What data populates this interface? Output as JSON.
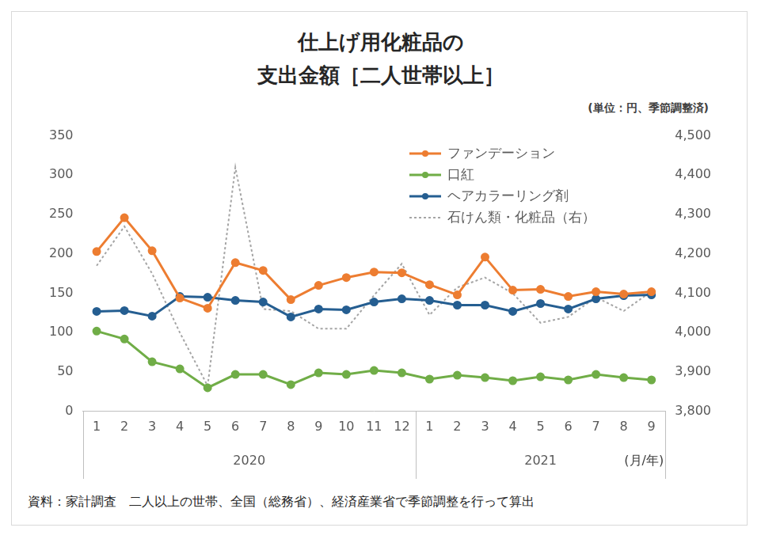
{
  "chart_data": {
    "type": "line",
    "title": [
      "仕上げ用化粧品の",
      "支出金額［二人世帯以上］"
    ],
    "unit_label": "(単位：円、季節調整済)",
    "source": "資料：家計調査　二人以上の世帯、全国（総務省）、経済産業省で季節調整を行って算出",
    "x_label": "(月/年)",
    "categories": [
      "1",
      "2",
      "3",
      "4",
      "5",
      "6",
      "7",
      "8",
      "9",
      "10",
      "11",
      "12",
      "1",
      "2",
      "3",
      "4",
      "5",
      "6",
      "7",
      "8",
      "9"
    ],
    "category_groups": [
      "2020",
      "2020",
      "2020",
      "2020",
      "2020",
      "2020",
      "2020",
      "2020",
      "2020",
      "2020",
      "2020",
      "2020",
      "2021",
      "2021",
      "2021",
      "2021",
      "2021",
      "2021",
      "2021",
      "2021",
      "2021"
    ],
    "ylim": [
      0,
      350
    ],
    "yticks": [
      0,
      50,
      100,
      150,
      200,
      250,
      300,
      350
    ],
    "y2lim": [
      3800,
      4500
    ],
    "y2ticks": [
      {
        "value": 3800,
        "label": "3,800"
      },
      {
        "value": 3900,
        "label": "3,900"
      },
      {
        "value": 4000,
        "label": "4,000"
      },
      {
        "value": 4100,
        "label": "4,100"
      },
      {
        "value": 4200,
        "label": "4,200"
      },
      {
        "value": 4300,
        "label": "4,300"
      },
      {
        "value": 4400,
        "label": "4,400"
      },
      {
        "value": 4500,
        "label": "4,500"
      }
    ],
    "grid": false,
    "legend": "top-right",
    "series": [
      {
        "name": "ファンデーション",
        "color": "#ed7d31",
        "marker": "circle",
        "line_style": "solid",
        "values": [
          203,
          246,
          204,
          144,
          131,
          189,
          179,
          142,
          160,
          170,
          177,
          176,
          161,
          148,
          196,
          154,
          155,
          146,
          152,
          149,
          152
        ]
      },
      {
        "name": "口紅",
        "color": "#70ad47",
        "marker": "circle",
        "line_style": "solid",
        "values": [
          102,
          92,
          63,
          54,
          30,
          47,
          47,
          34,
          49,
          47,
          52,
          49,
          41,
          46,
          43,
          39,
          44,
          40,
          47,
          43,
          40
        ]
      },
      {
        "name": "ヘアカラーリング剤",
        "color": "#255e91",
        "marker": "circle",
        "line_style": "solid",
        "values": [
          127,
          128,
          121,
          146,
          145,
          141,
          139,
          120,
          130,
          129,
          139,
          143,
          141,
          135,
          135,
          127,
          137,
          130,
          143,
          147,
          148
        ]
      },
      {
        "name": "石けん類・化粧品（右）",
        "color": "#a5a5a5",
        "marker": "none",
        "line_style": "dotted",
        "axis": "y2",
        "values": [
          4170,
          4270,
          4150,
          4000,
          3865,
          4420,
          4060,
          4055,
          4010,
          4010,
          4095,
          4175,
          4045,
          4115,
          4140,
          4100,
          4025,
          4040,
          4090,
          4055,
          4105
        ]
      }
    ]
  }
}
